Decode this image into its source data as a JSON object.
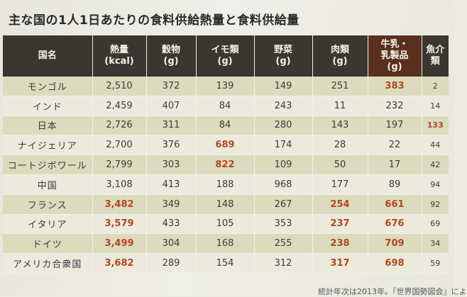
{
  "title": "主な国の1人1日あたりの食料供給熱量と食料供給量",
  "headers": [
    {
      "line1": "国名",
      "line2": "",
      "line3": ""
    },
    {
      "line1": "熱量",
      "line2": "(kcal)",
      "line3": ""
    },
    {
      "line1": "穀物",
      "line2": "(g)",
      "line3": ""
    },
    {
      "line1": "イモ類",
      "line2": "(g)",
      "line3": ""
    },
    {
      "line1": "野菜",
      "line2": "(g)",
      "line3": ""
    },
    {
      "line1": "肉類",
      "line2": "(g)",
      "line3": ""
    },
    {
      "line1": "牛乳・",
      "line2": "乳製品",
      "line3": "(g)"
    },
    {
      "line1": "魚介類",
      "line2": "",
      "line3": ""
    }
  ],
  "rows": [
    {
      "cells": [
        "モンゴル",
        "2,510",
        "372",
        "139",
        "149",
        "251",
        "383",
        "2"
      ],
      "highlight": [
        false,
        false,
        false,
        false,
        false,
        false,
        true,
        false
      ]
    },
    {
      "cells": [
        "インド",
        "2,459",
        "407",
        "84",
        "243",
        "11",
        "232",
        "14"
      ],
      "highlight": [
        false,
        false,
        false,
        false,
        false,
        false,
        false,
        false
      ]
    },
    {
      "cells": [
        "日本",
        "2,726",
        "311",
        "84",
        "280",
        "143",
        "197",
        "133"
      ],
      "highlight": [
        false,
        false,
        false,
        false,
        false,
        false,
        false,
        true
      ]
    },
    {
      "cells": [
        "ナイジェリア",
        "2,700",
        "376",
        "689",
        "174",
        "28",
        "22",
        "44"
      ],
      "highlight": [
        false,
        false,
        false,
        true,
        false,
        false,
        false,
        false
      ]
    },
    {
      "cells": [
        "コートジボワール",
        "2,799",
        "303",
        "822",
        "109",
        "50",
        "17",
        "42"
      ],
      "highlight": [
        false,
        false,
        false,
        true,
        false,
        false,
        false,
        false
      ]
    },
    {
      "cells": [
        "中国",
        "3,108",
        "413",
        "188",
        "968",
        "177",
        "89",
        "94"
      ],
      "highlight": [
        false,
        false,
        false,
        false,
        false,
        false,
        false,
        false
      ]
    },
    {
      "cells": [
        "フランス",
        "3,482",
        "349",
        "148",
        "267",
        "254",
        "661",
        "92"
      ],
      "highlight": [
        false,
        true,
        false,
        false,
        false,
        true,
        true,
        false
      ]
    },
    {
      "cells": [
        "イタリア",
        "3,579",
        "433",
        "105",
        "353",
        "237",
        "676",
        "69"
      ],
      "highlight": [
        false,
        true,
        false,
        false,
        false,
        true,
        true,
        false
      ]
    },
    {
      "cells": [
        "ドイツ",
        "3,499",
        "304",
        "168",
        "255",
        "238",
        "709",
        "34"
      ],
      "highlight": [
        false,
        true,
        false,
        false,
        false,
        true,
        true,
        false
      ]
    },
    {
      "cells": [
        "アメリカ合衆国",
        "3,682",
        "289",
        "154",
        "312",
        "317",
        "698",
        "59"
      ],
      "highlight": [
        false,
        true,
        false,
        false,
        false,
        true,
        true,
        false
      ]
    }
  ],
  "footnote": "統計年次は2013年。『世界国勢図会』によ",
  "colors": {
    "header_bg": "#3a3632",
    "milk_header_bg": "#5a2f1f",
    "highlight_text": "#b4471f",
    "row_odd": "#dcdbbe",
    "row_even": "#ebeadc"
  }
}
